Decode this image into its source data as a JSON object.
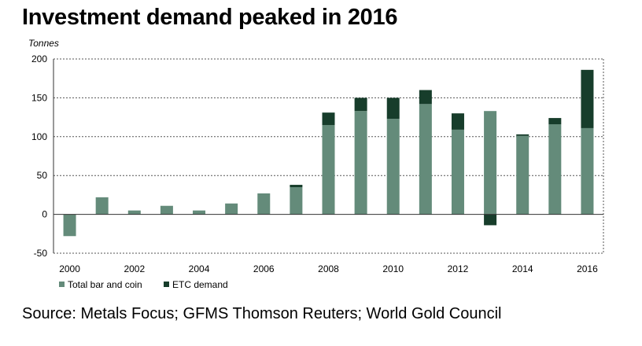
{
  "title": "Investment demand peaked in 2016",
  "source": "Source: Metals Focus; GFMS Thomson Reuters; World Gold Council",
  "chart_data": {
    "type": "bar",
    "stacked": true,
    "title": "Investment demand peaked in 2016",
    "xlabel": "",
    "ylabel": "Tonnes",
    "ylim": [
      -50,
      200
    ],
    "yticks": [
      200,
      150,
      100,
      50,
      0,
      -50
    ],
    "grid": true,
    "legend_position": "bottom-left",
    "categories": [
      "2000",
      "2001",
      "2002",
      "2003",
      "2004",
      "2005",
      "2006",
      "2007",
      "2008",
      "2009",
      "2010",
      "2011",
      "2012",
      "2013",
      "2014",
      "2015",
      "2016"
    ],
    "x_tick_labels": [
      "2000",
      "2002",
      "2004",
      "2006",
      "2008",
      "2010",
      "2012",
      "2014",
      "2016"
    ],
    "series": [
      {
        "name": "Total bar and coin",
        "color": "#648b7a",
        "values": [
          -28,
          22,
          5,
          11,
          5,
          14,
          27,
          35,
          115,
          133,
          123,
          142,
          109,
          133,
          101,
          116,
          111
        ]
      },
      {
        "name": "ETC demand",
        "color": "#173d2b",
        "values": [
          0,
          0,
          0,
          0,
          0,
          0,
          0,
          3,
          16,
          17,
          27,
          18,
          21,
          -14,
          2,
          8,
          75
        ]
      }
    ]
  }
}
